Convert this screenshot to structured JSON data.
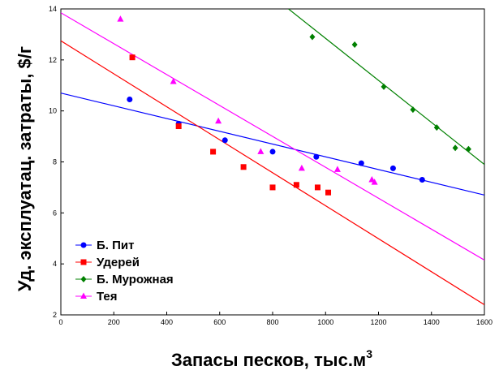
{
  "chart_data": {
    "type": "scatter",
    "xlabel": "Запасы песков, тыс.м",
    "xlabel_sup": "3",
    "ylabel": "Уд. эксплуатац. затраты, $/г",
    "xlim": [
      0,
      1600
    ],
    "ylim": [
      2,
      14
    ],
    "xticks": [
      0,
      200,
      400,
      600,
      800,
      1000,
      1200,
      1400,
      1600
    ],
    "yticks": [
      2,
      4,
      6,
      8,
      10,
      12,
      14
    ],
    "grid": false,
    "legend_position": "bottom-left",
    "series": [
      {
        "name": "Б. Пит",
        "color": "#0000ff",
        "marker": "circle",
        "points": [
          [
            260,
            10.45
          ],
          [
            445,
            9.5
          ],
          [
            620,
            8.85
          ],
          [
            800,
            8.4
          ],
          [
            965,
            8.2
          ],
          [
            1135,
            7.95
          ],
          [
            1255,
            7.75
          ],
          [
            1365,
            7.3
          ]
        ],
        "fit": [
          [
            0,
            10.7
          ],
          [
            1600,
            6.7
          ]
        ]
      },
      {
        "name": "Удерей",
        "color": "#ff0000",
        "marker": "square",
        "points": [
          [
            270,
            12.1
          ],
          [
            445,
            9.4
          ],
          [
            575,
            8.4
          ],
          [
            690,
            7.8
          ],
          [
            800,
            7.0
          ],
          [
            890,
            7.1
          ],
          [
            970,
            7.0
          ],
          [
            1010,
            6.8
          ]
        ],
        "fit": [
          [
            0,
            12.75
          ],
          [
            1600,
            2.4
          ]
        ]
      },
      {
        "name": "Б. Мурожная",
        "color": "#008000",
        "marker": "diamond",
        "points": [
          [
            950,
            12.9
          ],
          [
            1110,
            12.6
          ],
          [
            1220,
            10.95
          ],
          [
            1330,
            10.05
          ],
          [
            1420,
            9.35
          ],
          [
            1490,
            8.55
          ],
          [
            1540,
            8.5
          ]
        ],
        "fit": [
          [
            860,
            14.0
          ],
          [
            1600,
            7.9
          ]
        ]
      },
      {
        "name": "Тея",
        "color": "#ff00ff",
        "marker": "triangle",
        "points": [
          [
            225,
            13.6
          ],
          [
            425,
            11.15
          ],
          [
            595,
            9.6
          ],
          [
            755,
            8.4
          ],
          [
            910,
            7.75
          ],
          [
            1045,
            7.7
          ],
          [
            1175,
            7.3
          ],
          [
            1185,
            7.2
          ]
        ],
        "fit": [
          [
            0,
            13.85
          ],
          [
            1600,
            4.15
          ]
        ]
      }
    ]
  }
}
